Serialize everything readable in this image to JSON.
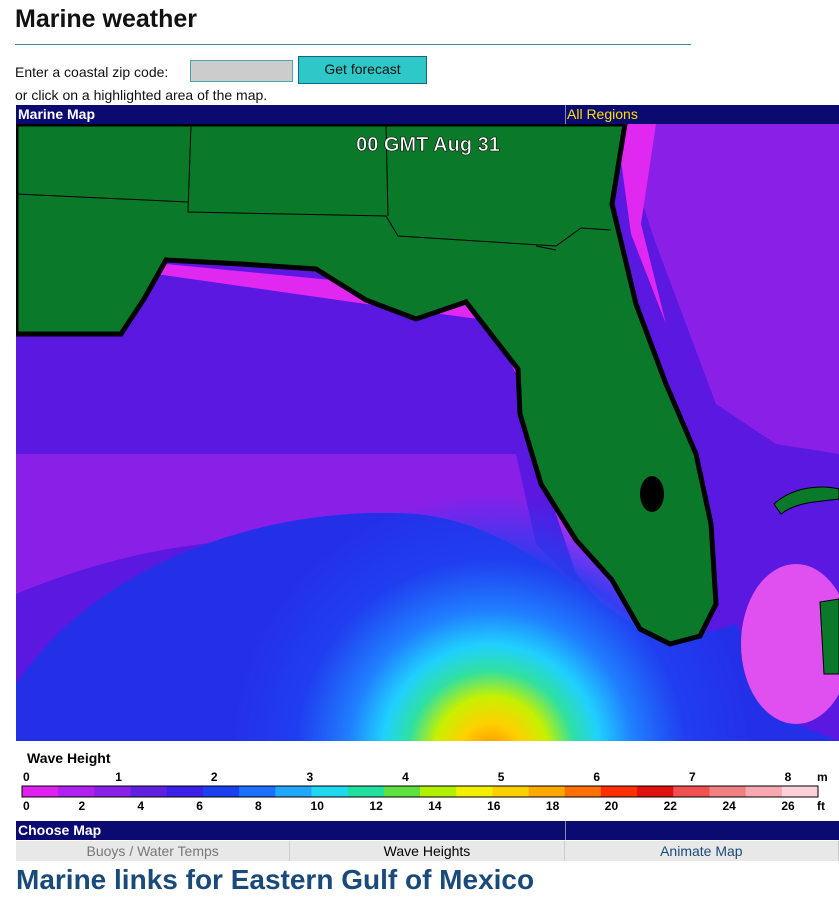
{
  "header": {
    "title": "Marine weather",
    "zip_prompt": "Enter a coastal zip code:",
    "button": "Get forecast",
    "map_prompt": "or click on a highlighted area of the map."
  },
  "map_bar": {
    "title": "Marine Map",
    "link": "All Regions"
  },
  "map": {
    "timestamp": "00 GMT Aug 31"
  },
  "legend": {
    "title": "Wave Height",
    "meters": [
      0,
      1,
      2,
      3,
      4,
      5,
      6,
      7,
      8
    ],
    "meters_unit": "m",
    "feet": [
      0,
      2,
      4,
      6,
      8,
      10,
      12,
      14,
      16,
      18,
      20,
      22,
      24,
      26
    ],
    "feet_unit": "ft"
  },
  "choose": {
    "title": "Choose Map",
    "tabs": [
      "Buoys / Water Temps",
      "Wave Heights",
      "Animate Map"
    ]
  },
  "links_title": "Marine links for Eastern Gulf of Mexico"
}
